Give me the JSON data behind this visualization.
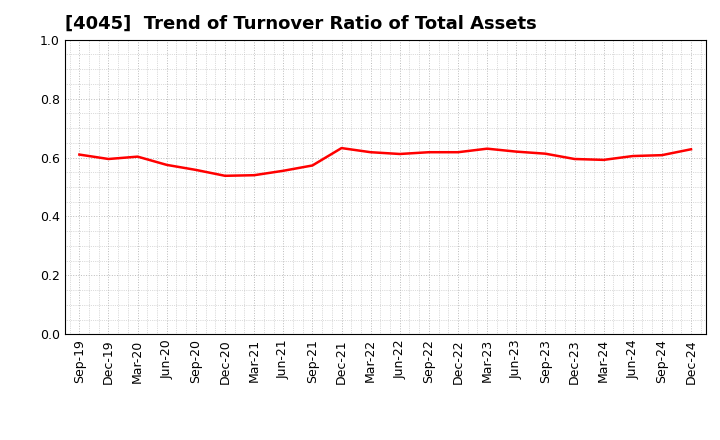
{
  "title": "[4045]  Trend of Turnover Ratio of Total Assets",
  "labels": [
    "Sep-19",
    "Dec-19",
    "Mar-20",
    "Jun-20",
    "Sep-20",
    "Dec-20",
    "Mar-21",
    "Jun-21",
    "Sep-21",
    "Dec-21",
    "Mar-22",
    "Jun-22",
    "Sep-22",
    "Dec-22",
    "Mar-23",
    "Jun-23",
    "Sep-23",
    "Dec-23",
    "Mar-24",
    "Jun-24",
    "Sep-24",
    "Dec-24"
  ],
  "values": [
    0.61,
    0.595,
    0.603,
    0.575,
    0.558,
    0.538,
    0.54,
    0.555,
    0.573,
    0.632,
    0.618,
    0.612,
    0.618,
    0.618,
    0.63,
    0.62,
    0.613,
    0.595,
    0.592,
    0.605,
    0.608,
    0.628
  ],
  "line_color": "#ff0000",
  "line_width": 1.8,
  "ylim": [
    0.0,
    1.0
  ],
  "yticks": [
    0.0,
    0.2,
    0.4,
    0.6,
    0.8,
    1.0
  ],
  "grid_color": "#bbbbbb",
  "background_color": "#ffffff",
  "title_fontsize": 13,
  "tick_fontsize": 9
}
